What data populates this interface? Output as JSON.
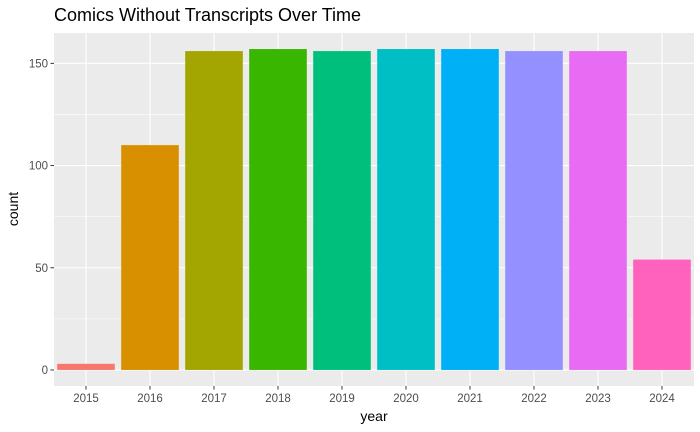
{
  "chart_data": {
    "type": "bar",
    "title": "Comics Without Transcripts Over Time",
    "xlabel": "year",
    "ylabel": "count",
    "categories": [
      "2015",
      "2016",
      "2017",
      "2018",
      "2019",
      "2020",
      "2021",
      "2022",
      "2023",
      "2024"
    ],
    "values": [
      3,
      110,
      156,
      157,
      156,
      157,
      157,
      156,
      156,
      54
    ],
    "colors": [
      "#F8766D",
      "#D89000",
      "#A3A500",
      "#39B600",
      "#00BF7D",
      "#00BFC4",
      "#00B0F6",
      "#9590FF",
      "#E76BF3",
      "#FF62BC"
    ],
    "ylim": [
      -7.85,
      164.85
    ],
    "yticks": [
      0,
      50,
      100,
      150
    ],
    "panel_background": "#EBEBEB",
    "grid_color": "#FFFFFF",
    "grid": true,
    "legend": "none"
  }
}
